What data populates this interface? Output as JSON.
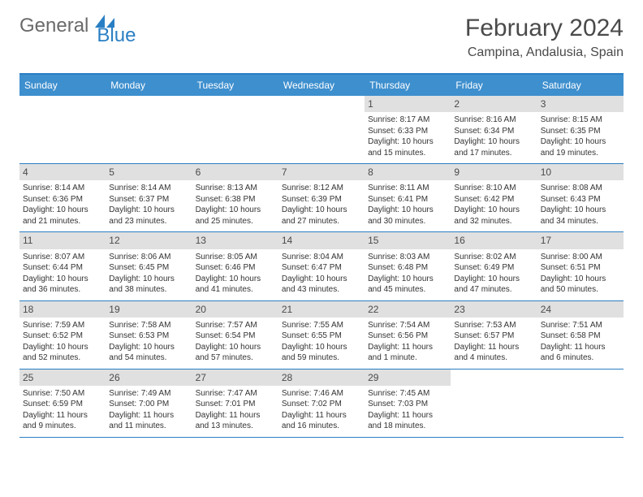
{
  "logo": {
    "text1": "General",
    "text2": "Blue"
  },
  "title": "February 2024",
  "location": "Campina, Andalusia, Spain",
  "colors": {
    "header_bg": "#3e8fce",
    "border": "#2a7fc4",
    "daynum_bg": "#e0e0e0",
    "text": "#333333",
    "title": "#4a4a4a"
  },
  "dayNames": [
    "Sunday",
    "Monday",
    "Tuesday",
    "Wednesday",
    "Thursday",
    "Friday",
    "Saturday"
  ],
  "weeks": [
    [
      {
        "n": "",
        "empty": true
      },
      {
        "n": "",
        "empty": true
      },
      {
        "n": "",
        "empty": true
      },
      {
        "n": "",
        "empty": true
      },
      {
        "n": "1",
        "sunrise": "8:17 AM",
        "sunset": "6:33 PM",
        "daylight": "10 hours and 15 minutes."
      },
      {
        "n": "2",
        "sunrise": "8:16 AM",
        "sunset": "6:34 PM",
        "daylight": "10 hours and 17 minutes."
      },
      {
        "n": "3",
        "sunrise": "8:15 AM",
        "sunset": "6:35 PM",
        "daylight": "10 hours and 19 minutes."
      }
    ],
    [
      {
        "n": "4",
        "sunrise": "8:14 AM",
        "sunset": "6:36 PM",
        "daylight": "10 hours and 21 minutes."
      },
      {
        "n": "5",
        "sunrise": "8:14 AM",
        "sunset": "6:37 PM",
        "daylight": "10 hours and 23 minutes."
      },
      {
        "n": "6",
        "sunrise": "8:13 AM",
        "sunset": "6:38 PM",
        "daylight": "10 hours and 25 minutes."
      },
      {
        "n": "7",
        "sunrise": "8:12 AM",
        "sunset": "6:39 PM",
        "daylight": "10 hours and 27 minutes."
      },
      {
        "n": "8",
        "sunrise": "8:11 AM",
        "sunset": "6:41 PM",
        "daylight": "10 hours and 30 minutes."
      },
      {
        "n": "9",
        "sunrise": "8:10 AM",
        "sunset": "6:42 PM",
        "daylight": "10 hours and 32 minutes."
      },
      {
        "n": "10",
        "sunrise": "8:08 AM",
        "sunset": "6:43 PM",
        "daylight": "10 hours and 34 minutes."
      }
    ],
    [
      {
        "n": "11",
        "sunrise": "8:07 AM",
        "sunset": "6:44 PM",
        "daylight": "10 hours and 36 minutes."
      },
      {
        "n": "12",
        "sunrise": "8:06 AM",
        "sunset": "6:45 PM",
        "daylight": "10 hours and 38 minutes."
      },
      {
        "n": "13",
        "sunrise": "8:05 AM",
        "sunset": "6:46 PM",
        "daylight": "10 hours and 41 minutes."
      },
      {
        "n": "14",
        "sunrise": "8:04 AM",
        "sunset": "6:47 PM",
        "daylight": "10 hours and 43 minutes."
      },
      {
        "n": "15",
        "sunrise": "8:03 AM",
        "sunset": "6:48 PM",
        "daylight": "10 hours and 45 minutes."
      },
      {
        "n": "16",
        "sunrise": "8:02 AM",
        "sunset": "6:49 PM",
        "daylight": "10 hours and 47 minutes."
      },
      {
        "n": "17",
        "sunrise": "8:00 AM",
        "sunset": "6:51 PM",
        "daylight": "10 hours and 50 minutes."
      }
    ],
    [
      {
        "n": "18",
        "sunrise": "7:59 AM",
        "sunset": "6:52 PM",
        "daylight": "10 hours and 52 minutes."
      },
      {
        "n": "19",
        "sunrise": "7:58 AM",
        "sunset": "6:53 PM",
        "daylight": "10 hours and 54 minutes."
      },
      {
        "n": "20",
        "sunrise": "7:57 AM",
        "sunset": "6:54 PM",
        "daylight": "10 hours and 57 minutes."
      },
      {
        "n": "21",
        "sunrise": "7:55 AM",
        "sunset": "6:55 PM",
        "daylight": "10 hours and 59 minutes."
      },
      {
        "n": "22",
        "sunrise": "7:54 AM",
        "sunset": "6:56 PM",
        "daylight": "11 hours and 1 minute."
      },
      {
        "n": "23",
        "sunrise": "7:53 AM",
        "sunset": "6:57 PM",
        "daylight": "11 hours and 4 minutes."
      },
      {
        "n": "24",
        "sunrise": "7:51 AM",
        "sunset": "6:58 PM",
        "daylight": "11 hours and 6 minutes."
      }
    ],
    [
      {
        "n": "25",
        "sunrise": "7:50 AM",
        "sunset": "6:59 PM",
        "daylight": "11 hours and 9 minutes."
      },
      {
        "n": "26",
        "sunrise": "7:49 AM",
        "sunset": "7:00 PM",
        "daylight": "11 hours and 11 minutes."
      },
      {
        "n": "27",
        "sunrise": "7:47 AM",
        "sunset": "7:01 PM",
        "daylight": "11 hours and 13 minutes."
      },
      {
        "n": "28",
        "sunrise": "7:46 AM",
        "sunset": "7:02 PM",
        "daylight": "11 hours and 16 minutes."
      },
      {
        "n": "29",
        "sunrise": "7:45 AM",
        "sunset": "7:03 PM",
        "daylight": "11 hours and 18 minutes."
      },
      {
        "n": "",
        "empty": true
      },
      {
        "n": "",
        "empty": true
      }
    ]
  ],
  "labels": {
    "sunrise": "Sunrise:",
    "sunset": "Sunset:",
    "daylight": "Daylight:"
  }
}
